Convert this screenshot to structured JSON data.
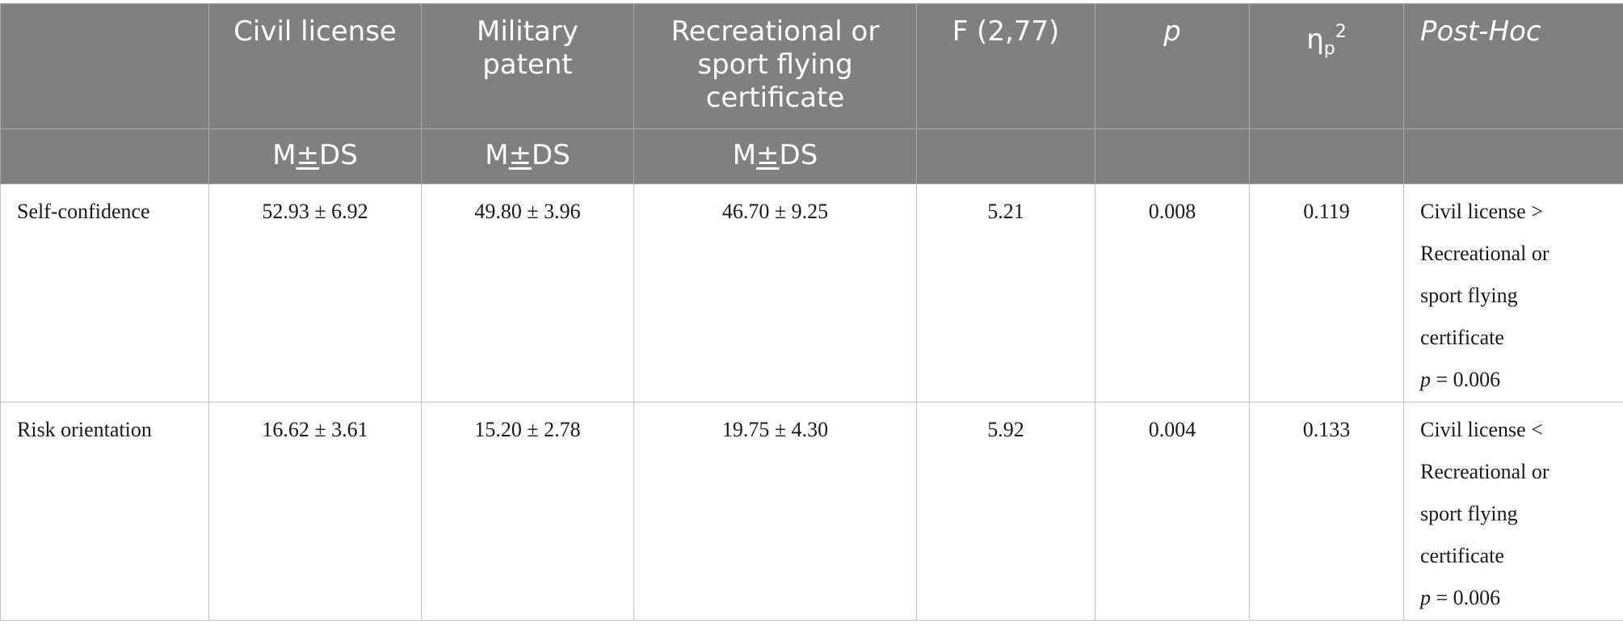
{
  "table": {
    "headers": {
      "c1": "Civil license",
      "c2": "Military patent",
      "c3": "Recreational or sport flying certificate",
      "c4": "F (2,77)",
      "c5": "p",
      "c6_base": "η",
      "c6_sub": "p",
      "c6_sup": "2",
      "c7": "Post-Hoc"
    },
    "subheaders": {
      "c1": "M±DS",
      "c2": "M±DS",
      "c3": "M±DS"
    },
    "rows": [
      {
        "label": "Self-confidence",
        "civil": "52.93 ± 6.92",
        "military": "49.80 ± 3.96",
        "recreational": "46.70 ± 9.25",
        "f": "5.21",
        "p": "0.008",
        "eta": "0.119",
        "posthoc_lines": [
          "Civil license >",
          "Recreational or",
          "sport flying",
          "certificate"
        ],
        "posthoc_p_label": "p",
        "posthoc_p_value": " = 0.006"
      },
      {
        "label": "Risk orientation",
        "civil": "16.62 ± 3.61",
        "military": "15.20 ± 2.78",
        "recreational": "19.75 ± 4.30",
        "f": "5.92",
        "p": "0.004",
        "eta": "0.133",
        "posthoc_lines": [
          "Civil license <",
          "Recreational or",
          "sport flying",
          "certificate"
        ],
        "posthoc_p_label": "p",
        "posthoc_p_value": " = 0.006"
      }
    ]
  }
}
